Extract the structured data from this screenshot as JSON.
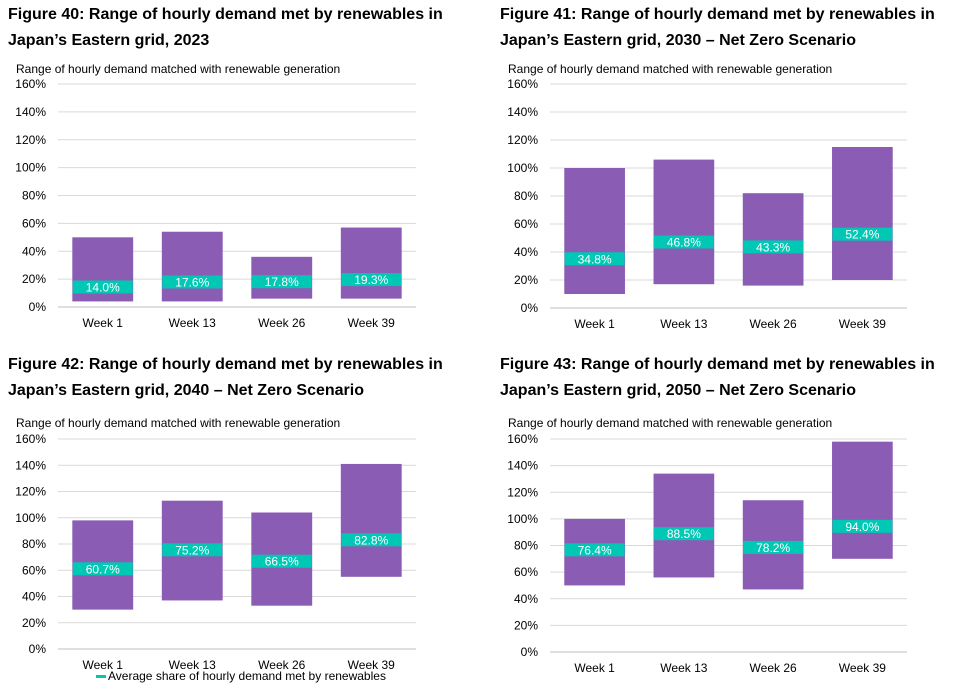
{
  "colors": {
    "bar": "#8B5CB4",
    "marker": "#00C8B4",
    "grid": "#D9D9D9",
    "axis": "#BFBFBF"
  },
  "legend": {
    "label": "Average share of hourly demand met by renewables"
  },
  "chart_data": [
    {
      "type": "bar",
      "figure_title": "Figure 40: Range of hourly demand met by renewables in Japan’s Eastern grid, 2023",
      "title_line1": "Figure 40: Range of hourly demand met by renewables in",
      "title_line2": "Japan’s Eastern grid, 2023",
      "ylabel": "Range of hourly demand  matched with renewable generation",
      "categories": [
        "Week 1",
        "Week 13",
        "Week 26",
        "Week 39"
      ],
      "ranges": [
        [
          4,
          50
        ],
        [
          4,
          54
        ],
        [
          6,
          36
        ],
        [
          6,
          57
        ]
      ],
      "averages": [
        14.0,
        17.6,
        17.8,
        19.3
      ],
      "average_labels": [
        "14.0%",
        "17.6%",
        "17.8%",
        "19.3%"
      ],
      "ylim": [
        0,
        160
      ],
      "yticks": [
        "0%",
        "20%",
        "40%",
        "60%",
        "80%",
        "100%",
        "120%",
        "140%",
        "160%"
      ]
    },
    {
      "type": "bar",
      "figure_title": "Figure 41: Range of hourly demand met by renewables in Japan’s Eastern grid, 2030 – Net Zero Scenario",
      "title_line1": "Figure 41: Range of hourly demand met by renewables in",
      "title_line2": "Japan’s Eastern grid, 2030 – Net Zero Scenario",
      "ylabel": "Range of hourly demand  matched with renewable generation",
      "categories": [
        "Week 1",
        "Week 13",
        "Week 26",
        "Week 39"
      ],
      "ranges": [
        [
          10,
          100
        ],
        [
          17,
          106
        ],
        [
          16,
          82
        ],
        [
          20,
          115
        ]
      ],
      "averages": [
        34.8,
        46.8,
        43.3,
        52.4
      ],
      "average_labels": [
        "34.8%",
        "46.8%",
        "43.3%",
        "52.4%"
      ],
      "ylim": [
        0,
        160
      ],
      "yticks": [
        "0%",
        "20%",
        "40%",
        "60%",
        "80%",
        "100%",
        "120%",
        "140%",
        "160%"
      ]
    },
    {
      "type": "bar",
      "figure_title": "Figure 42: Range of hourly demand met by renewables in Japan’s Eastern grid, 2040 – Net Zero Scenario",
      "title_line1": "Figure 42: Range of hourly demand met by renewables in",
      "title_line2": "Japan’s Eastern grid, 2040 – Net Zero Scenario",
      "ylabel": "Range of hourly demand  matched with renewable generation",
      "categories": [
        "Week 1",
        "Week 13",
        "Week 26",
        "Week 39"
      ],
      "ranges": [
        [
          30,
          98
        ],
        [
          37,
          113
        ],
        [
          33,
          104
        ],
        [
          55,
          141
        ]
      ],
      "averages": [
        60.7,
        75.2,
        66.5,
        82.8
      ],
      "average_labels": [
        "60.7%",
        "75.2%",
        "66.5%",
        "82.8%"
      ],
      "ylim": [
        0,
        160
      ],
      "yticks": [
        "0%",
        "20%",
        "40%",
        "60%",
        "80%",
        "100%",
        "120%",
        "140%",
        "160%"
      ]
    },
    {
      "type": "bar",
      "figure_title": "Figure 43: Range of hourly demand met by renewables in Japan’s Eastern grid, 2050 – Net Zero Scenario",
      "title_line1": "Figure 43: Range of hourly demand met by renewables in",
      "title_line2": "Japan’s Eastern grid, 2050 – Net Zero Scenario",
      "ylabel": "Range of hourly demand  matched with renewable generation",
      "categories": [
        "Week 1",
        "Week 13",
        "Week 26",
        "Week 39"
      ],
      "ranges": [
        [
          50,
          100
        ],
        [
          56,
          134
        ],
        [
          47,
          114
        ],
        [
          70,
          158
        ]
      ],
      "averages": [
        76.4,
        88.5,
        78.2,
        94.0
      ],
      "average_labels": [
        "76.4%",
        "88.5%",
        "78.2%",
        "94.0%"
      ],
      "ylim": [
        0,
        160
      ],
      "yticks": [
        "0%",
        "20%",
        "40%",
        "60%",
        "80%",
        "100%",
        "120%",
        "140%",
        "160%"
      ]
    }
  ]
}
